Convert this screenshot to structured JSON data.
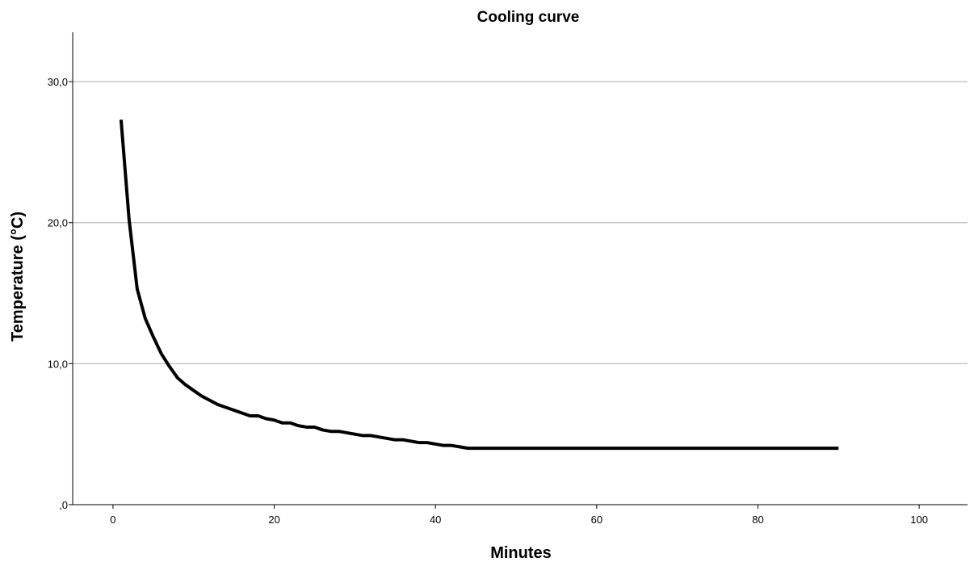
{
  "chart_data": {
    "type": "line",
    "title": "Cooling curve",
    "xlabel": "Minutes",
    "ylabel": "Temperature (°C)",
    "xlim": [
      -5,
      106
    ],
    "ylim": [
      0,
      33.5
    ],
    "x_ticks": [
      {
        "value": 0,
        "label": "0"
      },
      {
        "value": 20,
        "label": "20"
      },
      {
        "value": 40,
        "label": "40"
      },
      {
        "value": 60,
        "label": "60"
      },
      {
        "value": 80,
        "label": "80"
      },
      {
        "value": 100,
        "label": "100"
      }
    ],
    "y_ticks": [
      {
        "value": 0,
        "label": ",0"
      },
      {
        "value": 10,
        "label": "10,0"
      },
      {
        "value": 20,
        "label": "20,0"
      },
      {
        "value": 30,
        "label": "30,0"
      }
    ],
    "grid": {
      "horizontal": true,
      "vertical": false
    },
    "line_color": "#000000",
    "x": [
      1,
      2,
      3,
      4,
      5,
      6,
      7,
      8,
      9,
      10,
      11,
      12,
      13,
      14,
      15,
      16,
      17,
      18,
      19,
      20,
      21,
      22,
      23,
      24,
      25,
      26,
      27,
      28,
      29,
      30,
      31,
      32,
      33,
      34,
      35,
      36,
      37,
      38,
      39,
      40,
      41,
      42,
      43,
      44,
      45,
      50,
      55,
      60,
      65,
      70,
      75,
      80,
      85,
      90
    ],
    "series": [
      {
        "values": [
          27.3,
          20.2,
          15.3,
          13.2,
          11.9,
          10.7,
          9.8,
          9.0,
          8.5,
          8.1,
          7.7,
          7.4,
          7.1,
          6.9,
          6.7,
          6.5,
          6.3,
          6.3,
          6.1,
          6.0,
          5.8,
          5.8,
          5.6,
          5.5,
          5.5,
          5.3,
          5.2,
          5.2,
          5.1,
          5.0,
          4.9,
          4.9,
          4.8,
          4.7,
          4.6,
          4.6,
          4.5,
          4.4,
          4.4,
          4.3,
          4.2,
          4.2,
          4.1,
          4.0,
          4.0,
          4.0,
          4.0,
          4.0,
          4.0,
          4.0,
          4.0,
          4.0,
          4.0,
          4.0
        ]
      }
    ]
  }
}
